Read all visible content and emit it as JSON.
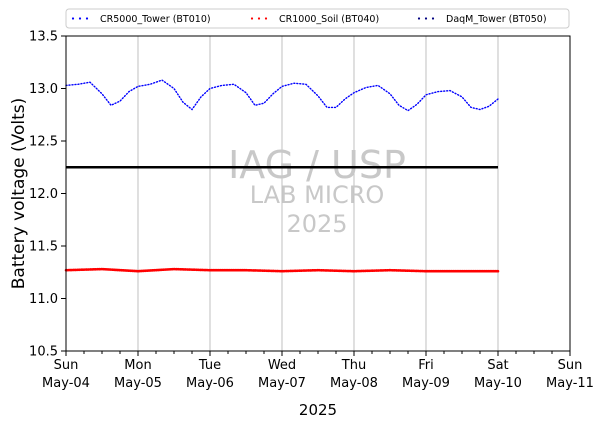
{
  "chart_data": {
    "type": "line",
    "title": "",
    "xlabel": "2025",
    "ylabel": "Battery voltage (Volts)",
    "xlim": [
      "2025-05-04",
      "2025-05-11"
    ],
    "ylim": [
      10.5,
      13.5
    ],
    "yticks": [
      10.5,
      11.0,
      11.5,
      12.0,
      12.5,
      13.0,
      13.5
    ],
    "xticks": [
      {
        "date": "2025-05-04",
        "day": "Sun",
        "date_label": "May-04"
      },
      {
        "date": "2025-05-05",
        "day": "Mon",
        "date_label": "May-05"
      },
      {
        "date": "2025-05-06",
        "day": "Tue",
        "date_label": "May-06"
      },
      {
        "date": "2025-05-07",
        "day": "Wed",
        "date_label": "May-07"
      },
      {
        "date": "2025-05-08",
        "day": "Thu",
        "date_label": "May-08"
      },
      {
        "date": "2025-05-09",
        "day": "Fri",
        "date_label": "May-09"
      },
      {
        "date": "2025-05-10",
        "day": "Sat",
        "date_label": "May-10"
      },
      {
        "date": "2025-05-11",
        "day": "Sun",
        "date_label": "May-11"
      }
    ],
    "grid": "vertical",
    "legend_position": "top",
    "reference_line": {
      "y": 12.25,
      "from": "2025-05-04",
      "to": "2025-05-10",
      "color": "#000000"
    },
    "watermark": [
      "IAG / USP",
      "LAB MICRO",
      "2025"
    ],
    "series": [
      {
        "name": "CR5000_Tower (BT010)",
        "color": "#0000ff",
        "style": "dotted",
        "x": [
          "2025-05-04 00:00",
          "2025-05-04 04:00",
          "2025-05-04 08:00",
          "2025-05-04 12:00",
          "2025-05-04 15:00",
          "2025-05-04 18:00",
          "2025-05-04 21:00",
          "2025-05-05 00:00",
          "2025-05-05 04:00",
          "2025-05-05 08:00",
          "2025-05-05 12:00",
          "2025-05-05 15:00",
          "2025-05-05 18:00",
          "2025-05-05 21:00",
          "2025-05-06 00:00",
          "2025-05-06 04:00",
          "2025-05-06 08:00",
          "2025-05-06 12:00",
          "2025-05-06 15:00",
          "2025-05-06 18:00",
          "2025-05-06 21:00",
          "2025-05-07 00:00",
          "2025-05-07 04:00",
          "2025-05-07 08:00",
          "2025-05-07 12:00",
          "2025-05-07 15:00",
          "2025-05-07 18:00",
          "2025-05-07 21:00",
          "2025-05-08 00:00",
          "2025-05-08 04:00",
          "2025-05-08 08:00",
          "2025-05-08 12:00",
          "2025-05-08 15:00",
          "2025-05-08 18:00",
          "2025-05-08 21:00",
          "2025-05-09 00:00",
          "2025-05-09 04:00",
          "2025-05-09 08:00",
          "2025-05-09 12:00",
          "2025-05-09 15:00",
          "2025-05-09 18:00",
          "2025-05-09 21:00",
          "2025-05-10 00:00"
        ],
        "y": [
          13.03,
          13.04,
          13.06,
          12.95,
          12.84,
          12.88,
          12.97,
          13.02,
          13.04,
          13.08,
          13.0,
          12.87,
          12.8,
          12.92,
          13.0,
          13.03,
          13.04,
          12.96,
          12.84,
          12.86,
          12.95,
          13.02,
          13.05,
          13.04,
          12.93,
          12.82,
          12.82,
          12.9,
          12.96,
          13.01,
          13.03,
          12.95,
          12.84,
          12.79,
          12.85,
          12.94,
          12.97,
          12.98,
          12.92,
          12.82,
          12.8,
          12.83,
          12.9
        ]
      },
      {
        "name": "CR1000_Soil (BT040)",
        "color": "#ff0000",
        "style": "dotted",
        "x": [
          "2025-05-04 00:00",
          "2025-05-04 12:00",
          "2025-05-05 00:00",
          "2025-05-05 12:00",
          "2025-05-06 00:00",
          "2025-05-06 12:00",
          "2025-05-07 00:00",
          "2025-05-07 12:00",
          "2025-05-08 00:00",
          "2025-05-08 12:00",
          "2025-05-09 00:00",
          "2025-05-09 12:00",
          "2025-05-10 00:00"
        ],
        "y": [
          11.27,
          11.28,
          11.26,
          11.28,
          11.27,
          11.27,
          11.26,
          11.27,
          11.26,
          11.27,
          11.26,
          11.26,
          11.26
        ]
      },
      {
        "name": "DaqM_Tower (BT050)",
        "color": "#000080",
        "style": "dotted",
        "x": [],
        "y": []
      }
    ]
  }
}
